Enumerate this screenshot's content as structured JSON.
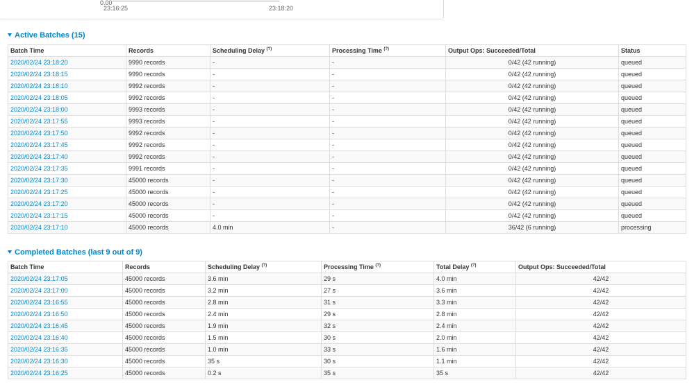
{
  "top_panel": {
    "y_tick": "0.00",
    "x_ticks": [
      "23:16:25",
      "23:18:20"
    ]
  },
  "active": {
    "title": "Active Batches (15)",
    "columns": [
      {
        "text": "Batch Time"
      },
      {
        "text": "Records"
      },
      {
        "text": "Scheduling Delay",
        "hint": "(?)"
      },
      {
        "text": "Processing Time",
        "hint": "(?)"
      },
      {
        "text": "Output Ops: Succeeded/Total"
      },
      {
        "text": "Status"
      }
    ],
    "rows": [
      [
        "2020/02/24 23:18:20",
        "9990 records",
        "-",
        "-",
        {
          "label": "0/42 (42 running)",
          "succeeded": 0,
          "total": 42
        },
        "queued"
      ],
      [
        "2020/02/24 23:18:15",
        "9990 records",
        "-",
        "-",
        {
          "label": "0/42 (42 running)",
          "succeeded": 0,
          "total": 42
        },
        "queued"
      ],
      [
        "2020/02/24 23:18:10",
        "9992 records",
        "-",
        "-",
        {
          "label": "0/42 (42 running)",
          "succeeded": 0,
          "total": 42
        },
        "queued"
      ],
      [
        "2020/02/24 23:18:05",
        "9992 records",
        "-",
        "-",
        {
          "label": "0/42 (42 running)",
          "succeeded": 0,
          "total": 42
        },
        "queued"
      ],
      [
        "2020/02/24 23:18:00",
        "9993 records",
        "-",
        "-",
        {
          "label": "0/42 (42 running)",
          "succeeded": 0,
          "total": 42
        },
        "queued"
      ],
      [
        "2020/02/24 23:17:55",
        "9993 records",
        "-",
        "-",
        {
          "label": "0/42 (42 running)",
          "succeeded": 0,
          "total": 42
        },
        "queued"
      ],
      [
        "2020/02/24 23:17:50",
        "9992 records",
        "-",
        "-",
        {
          "label": "0/42 (42 running)",
          "succeeded": 0,
          "total": 42
        },
        "queued"
      ],
      [
        "2020/02/24 23:17:45",
        "9992 records",
        "-",
        "-",
        {
          "label": "0/42 (42 running)",
          "succeeded": 0,
          "total": 42
        },
        "queued"
      ],
      [
        "2020/02/24 23:17:40",
        "9992 records",
        "-",
        "-",
        {
          "label": "0/42 (42 running)",
          "succeeded": 0,
          "total": 42
        },
        "queued"
      ],
      [
        "2020/02/24 23:17:35",
        "9991 records",
        "-",
        "-",
        {
          "label": "0/42 (42 running)",
          "succeeded": 0,
          "total": 42
        },
        "queued"
      ],
      [
        "2020/02/24 23:17:30",
        "45000 records",
        "-",
        "-",
        {
          "label": "0/42 (42 running)",
          "succeeded": 0,
          "total": 42
        },
        "queued"
      ],
      [
        "2020/02/24 23:17:25",
        "45000 records",
        "-",
        "-",
        {
          "label": "0/42 (42 running)",
          "succeeded": 0,
          "total": 42
        },
        "queued"
      ],
      [
        "2020/02/24 23:17:20",
        "45000 records",
        "-",
        "-",
        {
          "label": "0/42 (42 running)",
          "succeeded": 0,
          "total": 42
        },
        "queued"
      ],
      [
        "2020/02/24 23:17:15",
        "45000 records",
        "-",
        "-",
        {
          "label": "0/42 (42 running)",
          "succeeded": 0,
          "total": 42
        },
        "queued"
      ],
      [
        "2020/02/24 23:17:10",
        "45000 records",
        "4.0 min",
        "-",
        {
          "label": "36/42 (6 running)",
          "succeeded": 36,
          "total": 42
        },
        "processing"
      ]
    ]
  },
  "completed": {
    "title": "Completed Batches (last 9 out of 9)",
    "columns": [
      {
        "text": "Batch Time"
      },
      {
        "text": "Records"
      },
      {
        "text": "Scheduling Delay",
        "hint": "(?)"
      },
      {
        "text": "Processing Time",
        "hint": "(?)"
      },
      {
        "text": "Total Delay",
        "hint": "(?)"
      },
      {
        "text": "Output Ops: Succeeded/Total"
      }
    ],
    "rows": [
      [
        "2020/02/24 23:17:05",
        "45000 records",
        "3.6 min",
        "29 s",
        "4.0 min",
        {
          "label": "42/42",
          "succeeded": 42,
          "total": 42
        }
      ],
      [
        "2020/02/24 23:17:00",
        "45000 records",
        "3.2 min",
        "27 s",
        "3.6 min",
        {
          "label": "42/42",
          "succeeded": 42,
          "total": 42
        }
      ],
      [
        "2020/02/24 23:16:55",
        "45000 records",
        "2.8 min",
        "31 s",
        "3.3 min",
        {
          "label": "42/42",
          "succeeded": 42,
          "total": 42
        }
      ],
      [
        "2020/02/24 23:16:50",
        "45000 records",
        "2.4 min",
        "29 s",
        "2.8 min",
        {
          "label": "42/42",
          "succeeded": 42,
          "total": 42
        }
      ],
      [
        "2020/02/24 23:16:45",
        "45000 records",
        "1.9 min",
        "32 s",
        "2.4 min",
        {
          "label": "42/42",
          "succeeded": 42,
          "total": 42
        }
      ],
      [
        "2020/02/24 23:16:40",
        "45000 records",
        "1.5 min",
        "30 s",
        "2.0 min",
        {
          "label": "42/42",
          "succeeded": 42,
          "total": 42
        }
      ],
      [
        "2020/02/24 23:16:35",
        "45000 records",
        "1.0 min",
        "33 s",
        "1.6 min",
        {
          "label": "42/42",
          "succeeded": 42,
          "total": 42
        }
      ],
      [
        "2020/02/24 23:16:30",
        "45000 records",
        "35 s",
        "30 s",
        "1.1 min",
        {
          "label": "42/42",
          "succeeded": 42,
          "total": 42
        }
      ],
      [
        "2020/02/24 23:16:25",
        "45000 records",
        "0.2 s",
        "35 s",
        "35 s",
        {
          "label": "42/42",
          "succeeded": 42,
          "total": 42
        }
      ]
    ]
  }
}
